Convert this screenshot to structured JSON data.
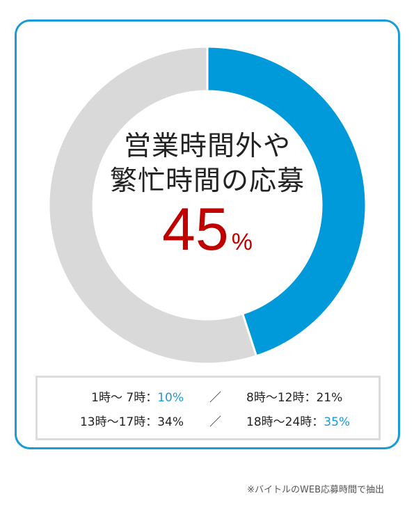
{
  "chart_data": {
    "type": "pie",
    "style": "donut",
    "slices": [
      {
        "label": "営業時間外や繁忙時間の応募",
        "value": 45,
        "color": "#0099d9"
      },
      {
        "label": "",
        "value": 55,
        "color": "#d9d9d9"
      }
    ],
    "title_lines": [
      "営業時間外や",
      "繁忙時間の応募"
    ],
    "center_value": "45",
    "center_unit": "%"
  },
  "legend": {
    "row1": {
      "left_label": "1時～ 7時：",
      "left_value": "10%",
      "separator": "／",
      "right_label": "8時～12時：",
      "right_value": "21%"
    },
    "row2": {
      "left_label": "13時～17時：",
      "left_value": "34%",
      "separator": "／",
      "right_label": "18時～24時：",
      "right_value": "35%"
    }
  },
  "colors": {
    "border": "#1a9ad6",
    "highlight_slice": "#0099d9",
    "rest_slice": "#d9d9d9",
    "center_value": "#c00000",
    "highlight_text": "#1a9ad6"
  },
  "footnote": "※バイトルのWEB応募時間で抽出"
}
